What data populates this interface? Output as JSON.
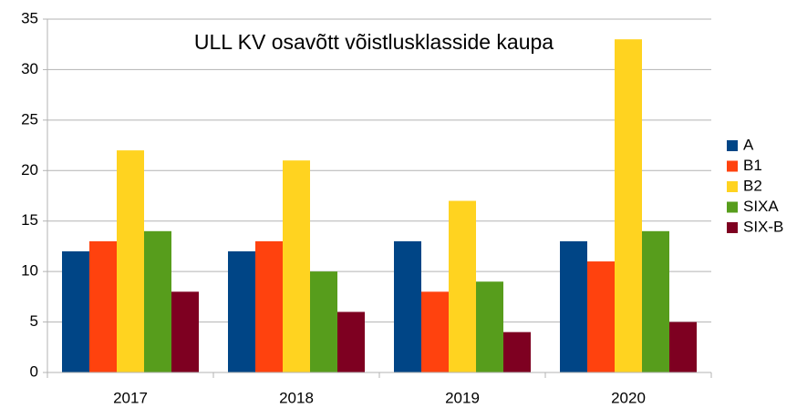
{
  "chart_data": {
    "type": "bar",
    "title": "ULL KV osavõtt võistlusklasside kaupa",
    "categories": [
      "2017",
      "2018",
      "2019",
      "2020"
    ],
    "series": [
      {
        "name": "A",
        "color": "#004586",
        "values": [
          12,
          12,
          13,
          13
        ]
      },
      {
        "name": "B1",
        "color": "#ff420e",
        "values": [
          13,
          13,
          8,
          11
        ]
      },
      {
        "name": "B2",
        "color": "#ffd320",
        "values": [
          22,
          21,
          17,
          33
        ]
      },
      {
        "name": "SIXA",
        "color": "#579d1c",
        "values": [
          14,
          10,
          9,
          14
        ]
      },
      {
        "name": "SIX-B",
        "color": "#7e0021",
        "values": [
          8,
          6,
          4,
          5
        ]
      }
    ],
    "ylim": [
      0,
      35
    ],
    "yticks": [
      0,
      5,
      10,
      15,
      20,
      25,
      30,
      35
    ],
    "grid": true,
    "legend": "right"
  }
}
